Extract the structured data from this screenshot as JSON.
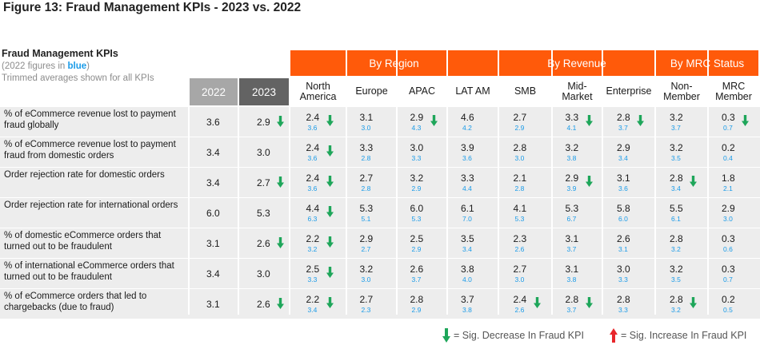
{
  "figure_title": "Figure 13: Fraud Management KPIs - 2023 vs. 2022",
  "kpi_header": {
    "title": "Fraud Management KPIs",
    "subtitle_prefix": "(2022 figures in ",
    "subtitle_blue": "blue",
    "subtitle_suffix": ")",
    "note": "Trimmed averages shown for all KPIs"
  },
  "groups": [
    {
      "label": "By Region"
    },
    {
      "label": "By Revenue"
    },
    {
      "label": "By MRC Status"
    }
  ],
  "year_headers": [
    "2022",
    "2023"
  ],
  "columns": [
    "North America",
    "Europe",
    "APAC",
    "LAT AM",
    "SMB",
    "Mid-Market",
    "Enterprise",
    "Non-Member",
    "MRC Member"
  ],
  "rows": [
    {
      "label": "% of eCommerce revenue lost to payment fraud globally",
      "y2022": "3.6",
      "y2023": "2.9",
      "y2023_arrow": "down",
      "cells": [
        {
          "v23": "2.4",
          "v22": "3.6",
          "arrow": "down"
        },
        {
          "v23": "3.1",
          "v22": "3.0",
          "arrow": ""
        },
        {
          "v23": "2.9",
          "v22": "4.3",
          "arrow": "down"
        },
        {
          "v23": "4.6",
          "v22": "4.2",
          "arrow": ""
        },
        {
          "v23": "2.7",
          "v22": "2.9",
          "arrow": ""
        },
        {
          "v23": "3.3",
          "v22": "4.1",
          "arrow": "down"
        },
        {
          "v23": "2.8",
          "v22": "3.7",
          "arrow": "down"
        },
        {
          "v23": "3.2",
          "v22": "3.7",
          "arrow": ""
        },
        {
          "v23": "0.3",
          "v22": "0.7",
          "arrow": "down"
        }
      ]
    },
    {
      "label": "% of eCommerce revenue lost to payment fraud from domestic orders",
      "y2022": "3.4",
      "y2023": "3.0",
      "y2023_arrow": "",
      "cells": [
        {
          "v23": "2.4",
          "v22": "3.6",
          "arrow": "down"
        },
        {
          "v23": "3.3",
          "v22": "2.8",
          "arrow": ""
        },
        {
          "v23": "3.0",
          "v22": "3.3",
          "arrow": ""
        },
        {
          "v23": "3.9",
          "v22": "3.6",
          "arrow": ""
        },
        {
          "v23": "2.8",
          "v22": "3.0",
          "arrow": ""
        },
        {
          "v23": "3.2",
          "v22": "3.8",
          "arrow": ""
        },
        {
          "v23": "2.9",
          "v22": "3.4",
          "arrow": ""
        },
        {
          "v23": "3.2",
          "v22": "3.5",
          "arrow": ""
        },
        {
          "v23": "0.2",
          "v22": "0.4",
          "arrow": ""
        }
      ]
    },
    {
      "label": "Order rejection rate for domestic orders",
      "y2022": "3.4",
      "y2023": "2.7",
      "y2023_arrow": "down",
      "cells": [
        {
          "v23": "2.4",
          "v22": "3.6",
          "arrow": "down"
        },
        {
          "v23": "2.7",
          "v22": "2.8",
          "arrow": ""
        },
        {
          "v23": "3.2",
          "v22": "2.9",
          "arrow": ""
        },
        {
          "v23": "3.3",
          "v22": "4.4",
          "arrow": ""
        },
        {
          "v23": "2.1",
          "v22": "2.8",
          "arrow": ""
        },
        {
          "v23": "2.9",
          "v22": "3.9",
          "arrow": "down"
        },
        {
          "v23": "3.1",
          "v22": "3.6",
          "arrow": ""
        },
        {
          "v23": "2.8",
          "v22": "3.4",
          "arrow": "down"
        },
        {
          "v23": "1.8",
          "v22": "2.1",
          "arrow": ""
        }
      ]
    },
    {
      "label": "Order rejection rate for international orders",
      "y2022": "6.0",
      "y2023": "5.3",
      "y2023_arrow": "",
      "cells": [
        {
          "v23": "4.4",
          "v22": "6.3",
          "arrow": "down"
        },
        {
          "v23": "5.3",
          "v22": "5.1",
          "arrow": ""
        },
        {
          "v23": "6.0",
          "v22": "5.3",
          "arrow": ""
        },
        {
          "v23": "6.1",
          "v22": "7.0",
          "arrow": ""
        },
        {
          "v23": "4.1",
          "v22": "5.3",
          "arrow": ""
        },
        {
          "v23": "5.3",
          "v22": "6.7",
          "arrow": ""
        },
        {
          "v23": "5.8",
          "v22": "6.0",
          "arrow": ""
        },
        {
          "v23": "5.5",
          "v22": "6.1",
          "arrow": ""
        },
        {
          "v23": "2.9",
          "v22": "3.0",
          "arrow": ""
        }
      ]
    },
    {
      "label": "% of domestic eCommerce orders that turned out to be fraudulent",
      "y2022": "3.1",
      "y2023": "2.6",
      "y2023_arrow": "down",
      "cells": [
        {
          "v23": "2.2",
          "v22": "3.2",
          "arrow": "down"
        },
        {
          "v23": "2.9",
          "v22": "2.7",
          "arrow": ""
        },
        {
          "v23": "2.5",
          "v22": "2.9",
          "arrow": ""
        },
        {
          "v23": "3.5",
          "v22": "3.4",
          "arrow": ""
        },
        {
          "v23": "2.3",
          "v22": "2.6",
          "arrow": ""
        },
        {
          "v23": "3.1",
          "v22": "3.7",
          "arrow": ""
        },
        {
          "v23": "2.6",
          "v22": "3.1",
          "arrow": ""
        },
        {
          "v23": "2.8",
          "v22": "3.2",
          "arrow": ""
        },
        {
          "v23": "0.3",
          "v22": "0.6",
          "arrow": ""
        }
      ]
    },
    {
      "label": "% of international eCommerce orders that turned out to be fraudulent",
      "y2022": "3.4",
      "y2023": "3.0",
      "y2023_arrow": "",
      "cells": [
        {
          "v23": "2.5",
          "v22": "3.3",
          "arrow": "down"
        },
        {
          "v23": "3.2",
          "v22": "3.0",
          "arrow": ""
        },
        {
          "v23": "2.6",
          "v22": "3.7",
          "arrow": ""
        },
        {
          "v23": "3.8",
          "v22": "4.0",
          "arrow": ""
        },
        {
          "v23": "2.7",
          "v22": "3.0",
          "arrow": ""
        },
        {
          "v23": "3.1",
          "v22": "3.8",
          "arrow": ""
        },
        {
          "v23": "3.0",
          "v22": "3.3",
          "arrow": ""
        },
        {
          "v23": "3.2",
          "v22": "3.5",
          "arrow": ""
        },
        {
          "v23": "0.3",
          "v22": "0.7",
          "arrow": ""
        }
      ]
    },
    {
      "label": "% of eCommerce orders that led to chargebacks (due to fraud)",
      "y2022": "3.1",
      "y2023": "2.6",
      "y2023_arrow": "down",
      "cells": [
        {
          "v23": "2.2",
          "v22": "3.4",
          "arrow": "down"
        },
        {
          "v23": "2.7",
          "v22": "2.3",
          "arrow": ""
        },
        {
          "v23": "2.8",
          "v22": "2.9",
          "arrow": ""
        },
        {
          "v23": "3.7",
          "v22": "3.8",
          "arrow": ""
        },
        {
          "v23": "2.4",
          "v22": "2.6",
          "arrow": "down"
        },
        {
          "v23": "2.8",
          "v22": "3.7",
          "arrow": "down"
        },
        {
          "v23": "2.8",
          "v22": "3.3",
          "arrow": ""
        },
        {
          "v23": "2.8",
          "v22": "3.2",
          "arrow": "down"
        },
        {
          "v23": "0.2",
          "v22": "0.5",
          "arrow": ""
        }
      ]
    }
  ],
  "legend": {
    "decrease": "= Sig. Decrease In Fraud KPI",
    "increase": "= Sig. Increase In Fraud KPI"
  },
  "colors": {
    "orange": "#ff5a0a",
    "grey_2022": "#a7a7a7",
    "grey_2023": "#636363",
    "blue": "#1a9be8",
    "green_arrow": "#1ea65a",
    "red_arrow": "#e8262b",
    "row_bg": "#ededed"
  }
}
